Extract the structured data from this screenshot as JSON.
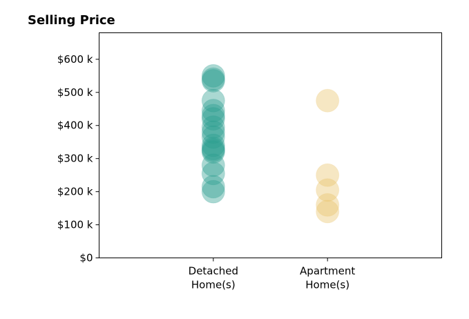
{
  "chart_data": {
    "type": "scatter",
    "title": "Selling Price",
    "xlabel": "",
    "ylabel": "",
    "categories": [
      [
        "Detached",
        "Home(s)"
      ],
      [
        "Apartment",
        "Home(s)"
      ]
    ],
    "xlim": [
      -1,
      2
    ],
    "ylim": [
      0,
      680000
    ],
    "yticks": [
      0,
      100000,
      200000,
      300000,
      400000,
      500000,
      600000
    ],
    "ytick_labels": [
      "$0",
      "$100 k",
      "$200 k",
      "$300 k",
      "$400 k",
      "$500 k",
      "$600 k"
    ],
    "grid": false,
    "marker_alpha": 0.4,
    "series": [
      {
        "color": "#2a9d8f",
        "x": 0,
        "values": [
          550000,
          535000,
          540000,
          475000,
          445000,
          430000,
          420000,
          395000,
          380000,
          365000,
          340000,
          330000,
          320000,
          325000,
          280000,
          255000,
          215000,
          200000
        ]
      },
      {
        "color": "#e9c46a",
        "x": 1,
        "values": [
          475000,
          250000,
          205000,
          160000,
          140000
        ]
      }
    ]
  }
}
